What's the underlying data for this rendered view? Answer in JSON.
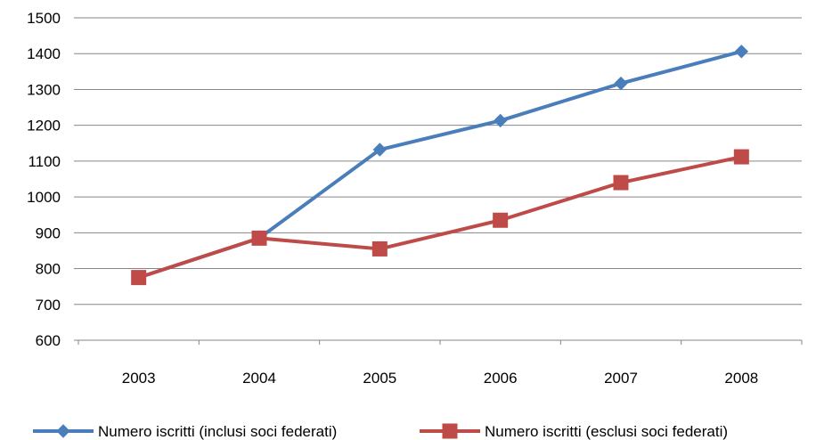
{
  "chart_data": {
    "type": "line",
    "categories": [
      "2003",
      "2004",
      "2005",
      "2006",
      "2007",
      "2008"
    ],
    "ylim": [
      600,
      1500
    ],
    "yticks": [
      600,
      700,
      800,
      900,
      1000,
      1100,
      1200,
      1300,
      1400,
      1500
    ],
    "grid": true,
    "legend_position": "bottom",
    "series": [
      {
        "name": "Numero iscritti (inclusi soci federati)",
        "color": "#4a7ebb",
        "marker": "diamond",
        "values": [
          775,
          885,
          1132,
          1213,
          1317,
          1406
        ]
      },
      {
        "name": "Numero iscritti (esclusi soci federati)",
        "color": "#be4b48",
        "marker": "square",
        "values": [
          775,
          885,
          855,
          935,
          1040,
          1112
        ]
      }
    ]
  }
}
